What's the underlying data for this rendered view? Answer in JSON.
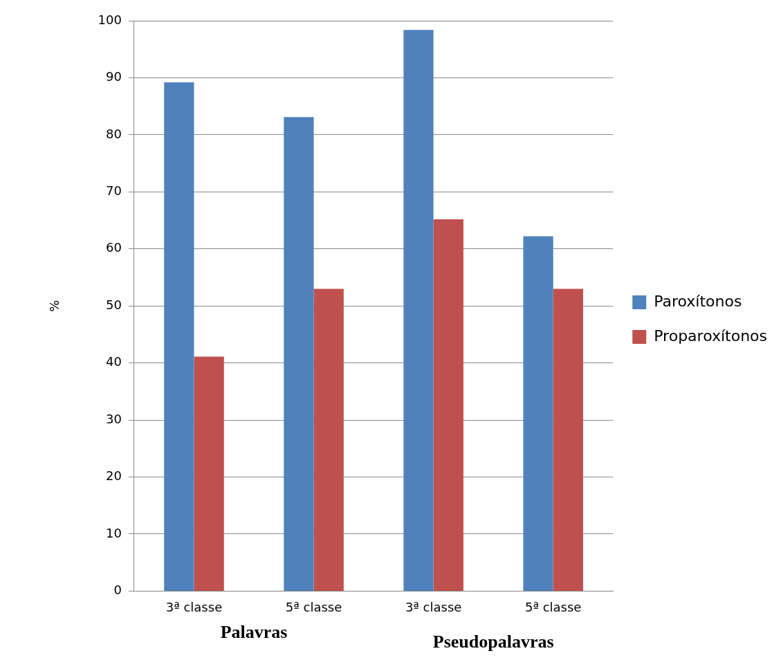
{
  "chart_data": {
    "type": "bar",
    "ylabel": "%",
    "categories": [
      "3ª classe",
      "5ª classe",
      "3ª classe",
      "5ª classe"
    ],
    "series": [
      {
        "name": "Paroxítonos",
        "color": "#4f81bd",
        "values": [
          89.2,
          83.1,
          98.4,
          62.2
        ]
      },
      {
        "name": "Proparoxítonos",
        "color": "#c0504d",
        "values": [
          41.1,
          53.0,
          65.2,
          53.0
        ]
      }
    ],
    "ylim": [
      0,
      100
    ],
    "yticks": [
      0,
      10,
      20,
      30,
      40,
      50,
      60,
      70,
      80,
      90,
      100
    ],
    "grid": "y",
    "legend": "right",
    "annotations": [
      "Palavras",
      "Pseudopalavras"
    ]
  }
}
